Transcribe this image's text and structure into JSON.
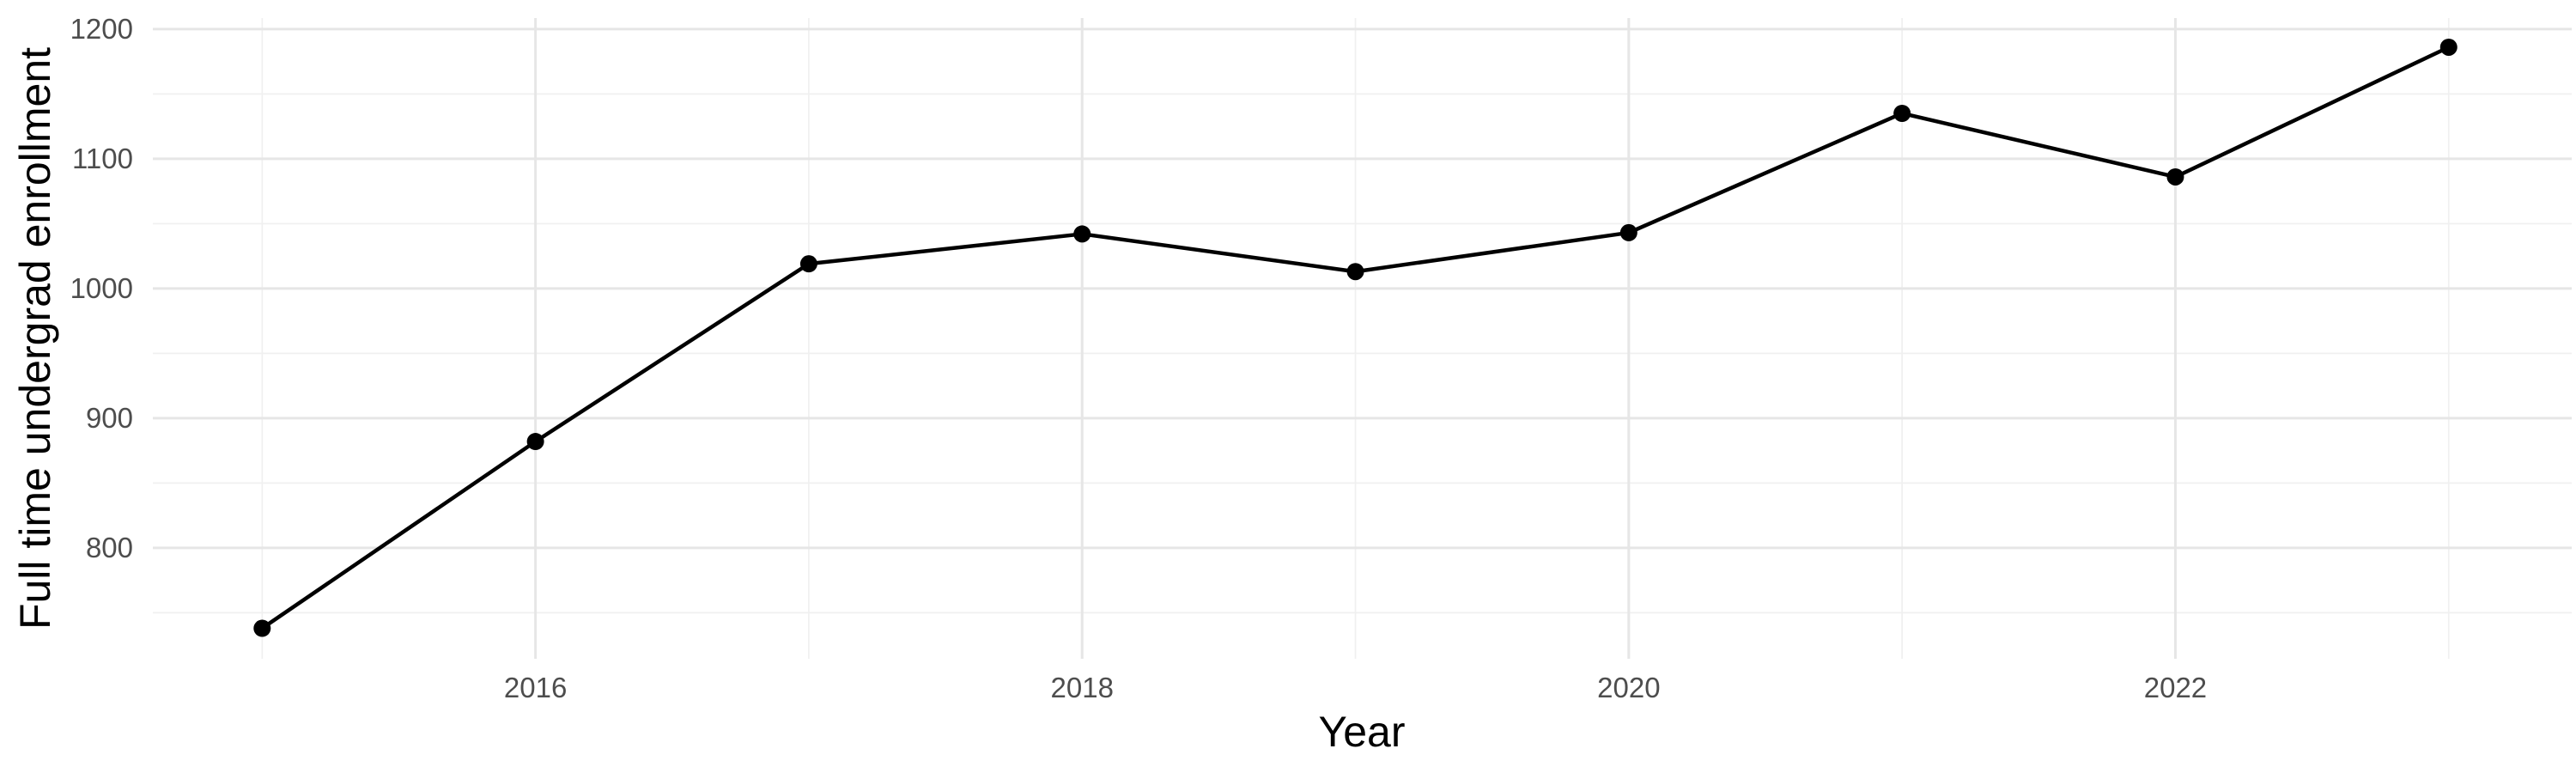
{
  "chart_data": {
    "type": "line",
    "title": "",
    "xlabel": "Year",
    "ylabel": "Full time undergrad enrollment",
    "x": [
      2015,
      2016,
      2017,
      2018,
      2019,
      2020,
      2021,
      2022,
      2023
    ],
    "series": [
      {
        "name": "Full time undergrad enrollment",
        "values": [
          738,
          882,
          1019,
          1042,
          1013,
          1043,
          1135,
          1086,
          1186
        ]
      }
    ],
    "x_ticks": [
      2016,
      2018,
      2020,
      2022
    ],
    "x_tick_labels": [
      "2016",
      "2018",
      "2020",
      "2022"
    ],
    "x_minor_gridlines": [
      2015,
      2017,
      2019,
      2021,
      2023
    ],
    "y_ticks": [
      800,
      900,
      1000,
      1100,
      1200
    ],
    "y_tick_labels": [
      "800",
      "900",
      "1000",
      "1100",
      "1200"
    ],
    "y_minor_gridlines": [
      750,
      850,
      950,
      1050,
      1150
    ],
    "x_domain": [
      2014.6,
      2023.45
    ],
    "y_domain": [
      714.5,
      1208.5
    ],
    "grid": true,
    "legend": "none",
    "marker": "filled-circle",
    "colors": {
      "line": "#000000",
      "point": "#000000",
      "grid_major": "#E6E6E6",
      "grid_minor": "#F0F0F0",
      "tick_label": "#4D4D4D",
      "axis_title": "#000000",
      "background": "#FFFFFF"
    }
  }
}
